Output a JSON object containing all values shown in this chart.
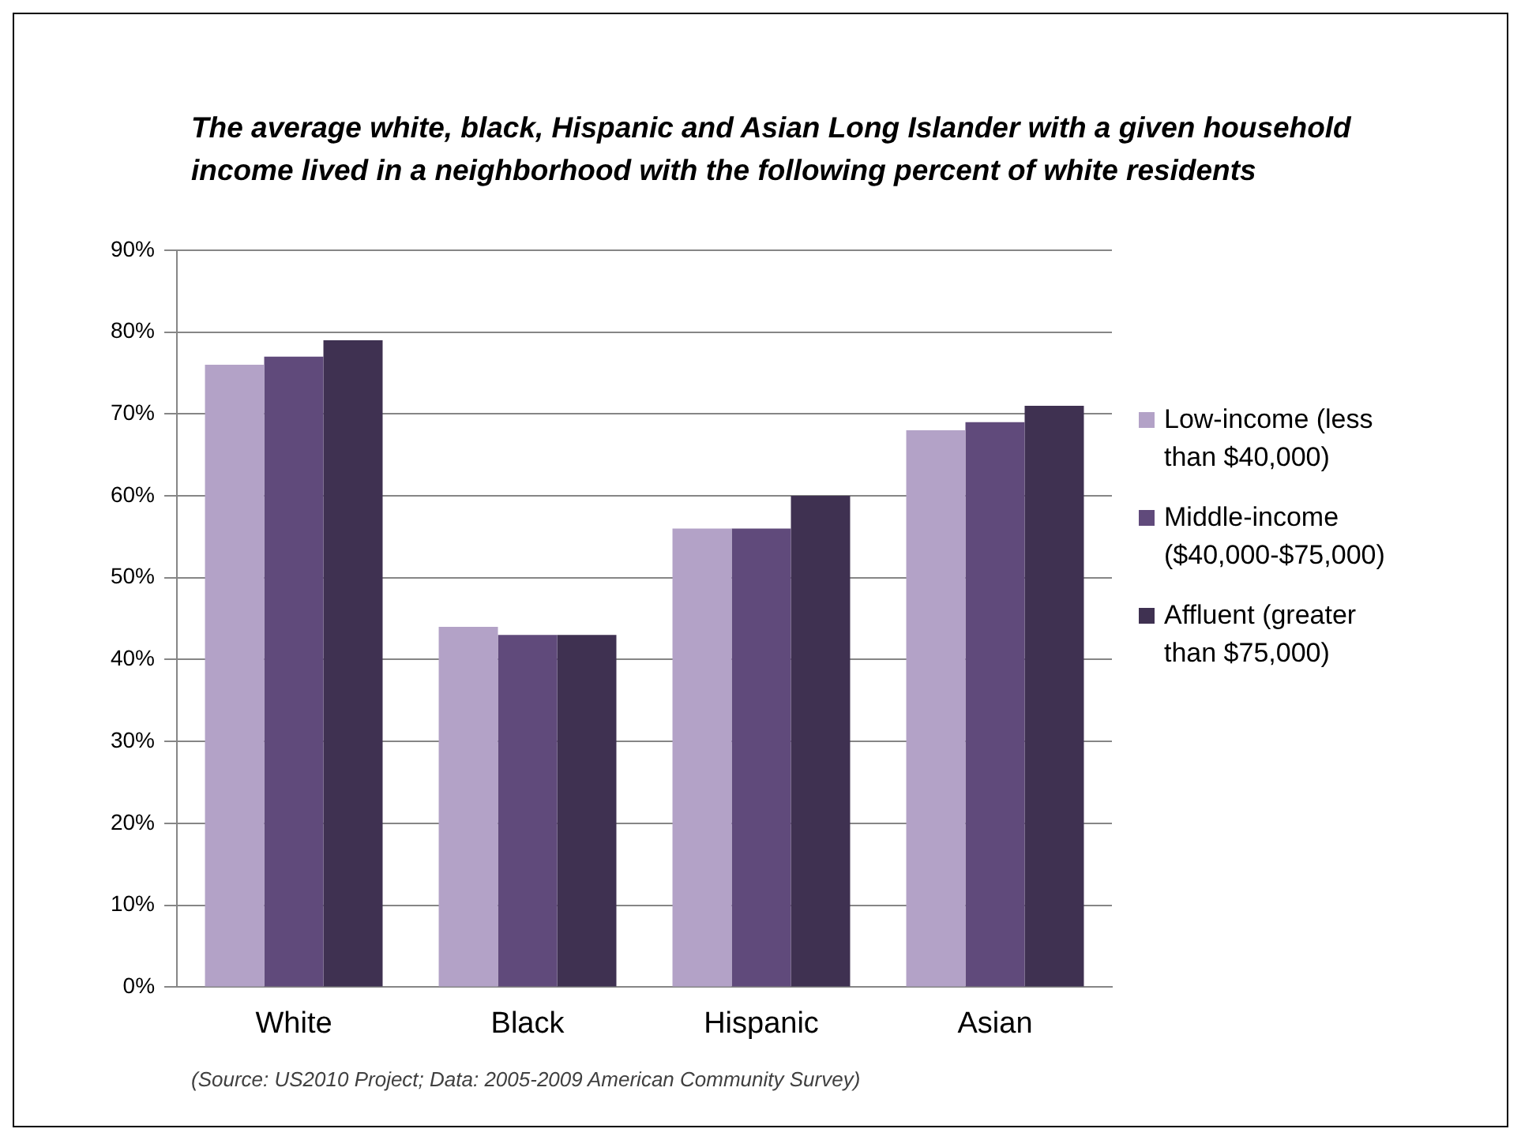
{
  "chart_data": {
    "type": "bar",
    "title": "The average white, black, Hispanic and Asian Long Islander with a given household income lived in a neighborhood with the following percent of white residents",
    "categories": [
      "White",
      "Black",
      "Hispanic",
      "Asian"
    ],
    "series": [
      {
        "name": "Low-income (less than $40,000)",
        "color": "#b3a2c7",
        "values": [
          76,
          44,
          56,
          68
        ]
      },
      {
        "name": "Middle-income ($40,000-$75,000)",
        "color": "#604a7b",
        "values": [
          77,
          43,
          56,
          69
        ]
      },
      {
        "name": "Affluent (greater than $75,000)",
        "color": "#3f3151",
        "values": [
          79,
          43,
          60,
          71
        ]
      }
    ],
    "ylim": [
      0,
      90
    ],
    "yticks": [
      {
        "value": 0,
        "label": "0%"
      },
      {
        "value": 10,
        "label": "10%"
      },
      {
        "value": 20,
        "label": "20%"
      },
      {
        "value": 30,
        "label": "30%"
      },
      {
        "value": 40,
        "label": "40%"
      },
      {
        "value": 50,
        "label": "50%"
      },
      {
        "value": 60,
        "label": "60%"
      },
      {
        "value": 70,
        "label": "70%"
      },
      {
        "value": 80,
        "label": "80%"
      },
      {
        "value": 90,
        "label": "90%"
      }
    ],
    "grid": "y",
    "legend": "right",
    "annotations": [
      "(Source: US2010 Project; Data: 2005-2009 American Community Survey)"
    ]
  }
}
